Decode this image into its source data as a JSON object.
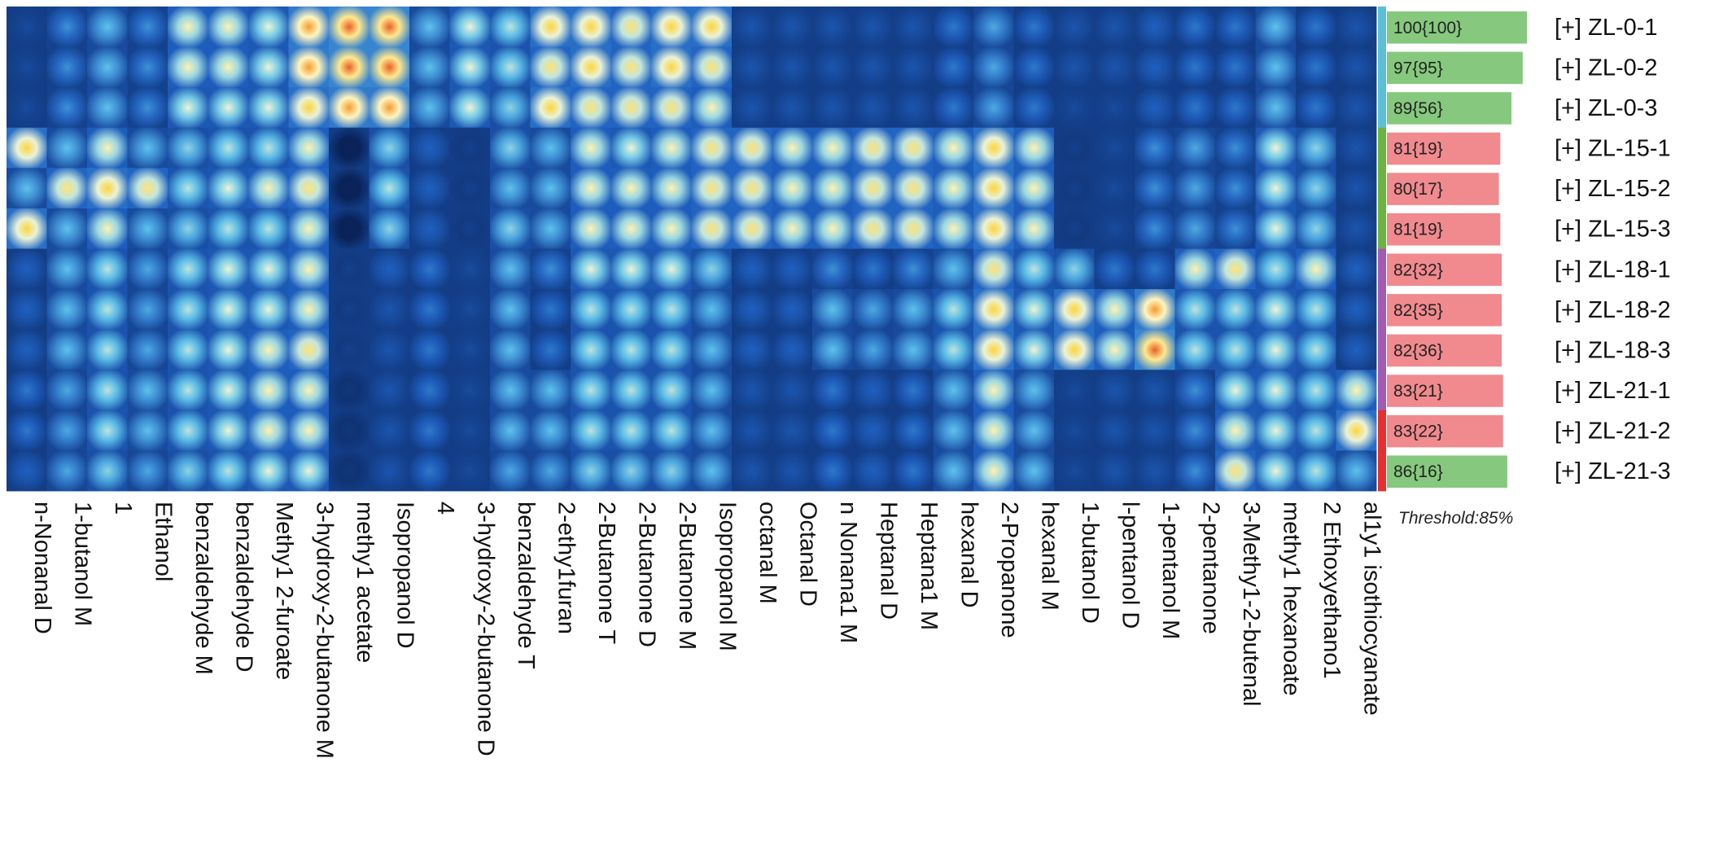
{
  "chart_data": {
    "type": "heatmap",
    "title": "",
    "threshold_label": "Threshold:85%",
    "columns": [
      "n-Nonanal D",
      "1-butanol M",
      "1",
      "Ethanol",
      "benzaldehyde M",
      "benzaldehyde D",
      "Methy1 2-furoate",
      "3-hydroxy-2-butanone M",
      "methy1 acetate",
      "Isopropanol D",
      "4",
      "3-hydroxy-2-butanone D",
      "benzaldehyde T",
      "2-ethy1furan",
      "2-Butanone T",
      "2-Butanone D",
      "2-Butanone M",
      "Isopropanol M",
      "octanal M",
      "Octanal D",
      "n Nonana1 M",
      "Heptanal D",
      "Heptana1 M",
      "hexanal D",
      "2-Propanone",
      "hexanal M",
      "1-butanol D",
      "l-pentanol D",
      "1-pentanol M",
      "2-pentanone",
      "3-Methy1-2-butenal",
      "methy1 hexanoate",
      "2 Ethoxyethano1",
      "al1y1 isothiocyanate"
    ],
    "rows": [
      {
        "name": "ZL-0-1",
        "label": "[+] ZL-0-1",
        "score": 100,
        "sub": 100,
        "text": "100{100}",
        "pass": true,
        "group_color": "#5bc0d6"
      },
      {
        "name": "ZL-0-2",
        "label": "[+] ZL-0-2",
        "score": 97,
        "sub": 95,
        "text": "97{95}",
        "pass": true,
        "group_color": "#5bc0d6"
      },
      {
        "name": "ZL-0-3",
        "label": "[+] ZL-0-3",
        "score": 89,
        "sub": 56,
        "text": "89{56}",
        "pass": true,
        "group_color": "#5bc0d6"
      },
      {
        "name": "ZL-15-1",
        "label": "[+] ZL-15-1",
        "score": 81,
        "sub": 19,
        "text": "81{19}",
        "pass": false,
        "group_color": "#6db33f"
      },
      {
        "name": "ZL-15-2",
        "label": "[+] ZL-15-2",
        "score": 80,
        "sub": 17,
        "text": "80{17}",
        "pass": false,
        "group_color": "#6db33f"
      },
      {
        "name": "ZL-15-3",
        "label": "[+] ZL-15-3",
        "score": 81,
        "sub": 19,
        "text": "81{19}",
        "pass": false,
        "group_color": "#6db33f"
      },
      {
        "name": "ZL-18-1",
        "label": "[+] ZL-18-1",
        "score": 82,
        "sub": 32,
        "text": "82{32}",
        "pass": false,
        "group_color": "#a25bb0"
      },
      {
        "name": "ZL-18-2",
        "label": "[+] ZL-18-2",
        "score": 82,
        "sub": 35,
        "text": "82{35}",
        "pass": false,
        "group_color": "#a25bb0"
      },
      {
        "name": "ZL-18-3",
        "label": "[+] ZL-18-3",
        "score": 82,
        "sub": 36,
        "text": "82{36}",
        "pass": false,
        "group_color": "#a25bb0"
      },
      {
        "name": "ZL-21-1",
        "label": "[+] ZL-21-1",
        "score": 83,
        "sub": 21,
        "text": "83{21}",
        "pass": false,
        "group_color": "#a25bb0"
      },
      {
        "name": "ZL-21-2",
        "label": "[+] ZL-21-2",
        "score": 83,
        "sub": 22,
        "text": "83{22}",
        "pass": false,
        "group_color": "#e53030"
      },
      {
        "name": "ZL-21-3",
        "label": "[+] ZL-21-3",
        "score": 86,
        "sub": 16,
        "text": "86{16}",
        "pass": true,
        "group_color": "#e53030"
      }
    ],
    "values": [
      [
        0.25,
        0.45,
        0.55,
        0.45,
        0.75,
        0.75,
        0.7,
        0.9,
        0.95,
        0.95,
        0.55,
        0.7,
        0.65,
        0.85,
        0.85,
        0.8,
        0.85,
        0.85,
        0.3,
        0.3,
        0.3,
        0.3,
        0.3,
        0.4,
        0.5,
        0.4,
        0.3,
        0.3,
        0.35,
        0.4,
        0.4,
        0.55,
        0.4,
        0.3
      ],
      [
        0.25,
        0.45,
        0.55,
        0.45,
        0.75,
        0.75,
        0.7,
        0.9,
        0.95,
        0.95,
        0.55,
        0.7,
        0.65,
        0.8,
        0.85,
        0.8,
        0.85,
        0.8,
        0.3,
        0.3,
        0.3,
        0.3,
        0.3,
        0.4,
        0.5,
        0.4,
        0.3,
        0.3,
        0.35,
        0.4,
        0.4,
        0.55,
        0.4,
        0.3
      ],
      [
        0.25,
        0.45,
        0.55,
        0.45,
        0.7,
        0.7,
        0.7,
        0.85,
        0.9,
        0.9,
        0.55,
        0.7,
        0.6,
        0.85,
        0.8,
        0.8,
        0.8,
        0.75,
        0.3,
        0.3,
        0.3,
        0.3,
        0.3,
        0.4,
        0.5,
        0.4,
        0.25,
        0.25,
        0.35,
        0.4,
        0.4,
        0.55,
        0.4,
        0.3
      ],
      [
        0.85,
        0.55,
        0.75,
        0.55,
        0.6,
        0.65,
        0.65,
        0.75,
        0.05,
        0.6,
        0.35,
        0.2,
        0.6,
        0.55,
        0.75,
        0.7,
        0.75,
        0.8,
        0.8,
        0.75,
        0.75,
        0.8,
        0.8,
        0.75,
        0.85,
        0.75,
        0.2,
        0.25,
        0.45,
        0.5,
        0.45,
        0.7,
        0.6,
        0.3
      ],
      [
        0.55,
        0.8,
        0.85,
        0.8,
        0.65,
        0.7,
        0.75,
        0.8,
        0.05,
        0.65,
        0.35,
        0.2,
        0.55,
        0.55,
        0.75,
        0.75,
        0.75,
        0.8,
        0.8,
        0.75,
        0.75,
        0.8,
        0.8,
        0.75,
        0.85,
        0.75,
        0.2,
        0.25,
        0.45,
        0.5,
        0.45,
        0.7,
        0.6,
        0.3
      ],
      [
        0.85,
        0.55,
        0.75,
        0.55,
        0.6,
        0.65,
        0.65,
        0.75,
        0.05,
        0.6,
        0.35,
        0.2,
        0.6,
        0.55,
        0.75,
        0.75,
        0.75,
        0.8,
        0.8,
        0.75,
        0.75,
        0.8,
        0.8,
        0.75,
        0.85,
        0.75,
        0.2,
        0.25,
        0.45,
        0.5,
        0.45,
        0.7,
        0.6,
        0.3
      ],
      [
        0.35,
        0.55,
        0.65,
        0.5,
        0.65,
        0.7,
        0.7,
        0.75,
        0.2,
        0.35,
        0.4,
        0.25,
        0.55,
        0.45,
        0.7,
        0.7,
        0.7,
        0.6,
        0.35,
        0.35,
        0.45,
        0.4,
        0.45,
        0.55,
        0.8,
        0.65,
        0.6,
        0.4,
        0.4,
        0.75,
        0.8,
        0.65,
        0.75,
        0.35
      ],
      [
        0.35,
        0.55,
        0.65,
        0.5,
        0.65,
        0.7,
        0.7,
        0.75,
        0.2,
        0.3,
        0.4,
        0.25,
        0.55,
        0.4,
        0.65,
        0.65,
        0.65,
        0.55,
        0.35,
        0.35,
        0.55,
        0.5,
        0.55,
        0.65,
        0.85,
        0.7,
        0.85,
        0.75,
        0.9,
        0.65,
        0.65,
        0.7,
        0.65,
        0.35
      ],
      [
        0.35,
        0.55,
        0.65,
        0.5,
        0.65,
        0.7,
        0.75,
        0.8,
        0.2,
        0.3,
        0.4,
        0.25,
        0.55,
        0.4,
        0.65,
        0.65,
        0.65,
        0.55,
        0.35,
        0.35,
        0.55,
        0.5,
        0.55,
        0.65,
        0.85,
        0.7,
        0.85,
        0.75,
        0.95,
        0.65,
        0.65,
        0.7,
        0.65,
        0.35
      ],
      [
        0.4,
        0.5,
        0.65,
        0.55,
        0.65,
        0.7,
        0.75,
        0.75,
        0.15,
        0.3,
        0.4,
        0.25,
        0.55,
        0.55,
        0.65,
        0.65,
        0.65,
        0.55,
        0.3,
        0.3,
        0.4,
        0.35,
        0.4,
        0.55,
        0.75,
        0.55,
        0.25,
        0.3,
        0.3,
        0.45,
        0.7,
        0.7,
        0.65,
        0.75
      ],
      [
        0.4,
        0.5,
        0.65,
        0.55,
        0.65,
        0.7,
        0.75,
        0.75,
        0.15,
        0.3,
        0.4,
        0.25,
        0.55,
        0.55,
        0.65,
        0.65,
        0.65,
        0.55,
        0.3,
        0.3,
        0.4,
        0.35,
        0.4,
        0.55,
        0.75,
        0.55,
        0.25,
        0.3,
        0.3,
        0.45,
        0.75,
        0.7,
        0.65,
        0.85
      ],
      [
        0.35,
        0.5,
        0.6,
        0.5,
        0.6,
        0.65,
        0.7,
        0.7,
        0.15,
        0.3,
        0.4,
        0.25,
        0.5,
        0.5,
        0.6,
        0.6,
        0.6,
        0.55,
        0.3,
        0.3,
        0.4,
        0.35,
        0.4,
        0.55,
        0.75,
        0.55,
        0.25,
        0.3,
        0.3,
        0.45,
        0.8,
        0.7,
        0.65,
        0.55
      ]
    ],
    "colors": {
      "low": "#061a4a",
      "mid": "#3a9ad9",
      "high_mid": "#ffe24d",
      "high": "#e0281c",
      "pass": "#86c97e",
      "fail": "#f08a8e"
    }
  }
}
